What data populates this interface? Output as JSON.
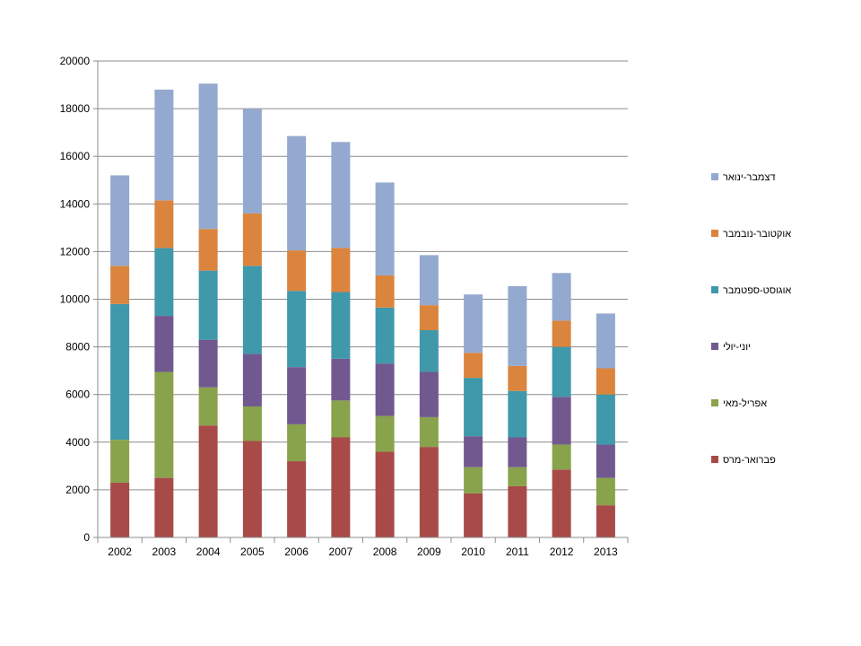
{
  "chart_data": {
    "type": "bar",
    "stacked": true,
    "title": "",
    "xlabel": "",
    "ylabel": "",
    "categories": [
      "2002",
      "2003",
      "2004",
      "2005",
      "2006",
      "2007",
      "2008",
      "2009",
      "2010",
      "2011",
      "2012",
      "2013"
    ],
    "ylim": [
      0,
      20000
    ],
    "yticks": [
      0,
      2000,
      4000,
      6000,
      8000,
      10000,
      12000,
      14000,
      16000,
      18000,
      20000
    ],
    "grid": true,
    "legend_position": "right",
    "series": [
      {
        "name": "פברואר-מרס",
        "color": "#A84A48",
        "values": [
          2300,
          2500,
          4700,
          4050,
          3200,
          4200,
          3600,
          3800,
          1850,
          2150,
          2850,
          1350
        ]
      },
      {
        "name": "אפריל-מאי",
        "color": "#89A24C",
        "values": [
          1800,
          4450,
          1600,
          1450,
          1550,
          1550,
          1500,
          1250,
          1100,
          800,
          1050,
          1150
        ]
      },
      {
        "name": "יוני-יולי",
        "color": "#71588F",
        "values": [
          0,
          2350,
          2000,
          2200,
          2400,
          1750,
          2200,
          1900,
          1300,
          1250,
          2000,
          1400
        ]
      },
      {
        "name": "אוגוסט-ספטמבר",
        "color": "#4098AB",
        "values": [
          5700,
          2850,
          2900,
          3700,
          3200,
          2800,
          2350,
          1750,
          2450,
          1950,
          2100,
          2100
        ]
      },
      {
        "name": "אוקטובר-נובמבר",
        "color": "#DB843D",
        "values": [
          1600,
          2000,
          1750,
          2200,
          1700,
          1850,
          1350,
          1050,
          1050,
          1050,
          1100,
          1100
        ]
      },
      {
        "name": "דצמבר-ינואר",
        "color": "#93A9CF",
        "values": [
          3800,
          4650,
          6100,
          4400,
          4800,
          4450,
          3900,
          2100,
          2450,
          3350,
          2000,
          2300
        ]
      }
    ]
  }
}
